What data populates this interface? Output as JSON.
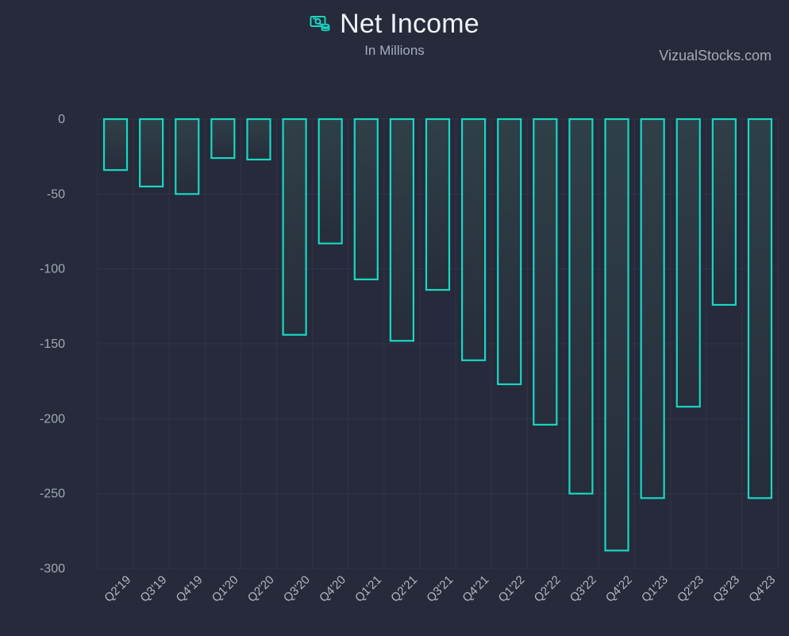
{
  "header": {
    "title": "Net Income",
    "subtitle": "In Millions",
    "watermark": "VizualStocks.com"
  },
  "colors": {
    "background": "#262a3b",
    "bar_stroke": "#17d8c2",
    "bar_fill_top": "#2f4048",
    "bar_fill_bottom": "#272d3b",
    "grid": "#303547",
    "axis_text": "#a2a8b6"
  },
  "icons": {
    "title_icon": "money-stack-icon"
  },
  "chart_data": {
    "type": "bar",
    "title": "Net Income",
    "subtitle": "In Millions",
    "xlabel": "",
    "ylabel": "",
    "categories": [
      "Q2'19",
      "Q3'19",
      "Q4'19",
      "Q1'20",
      "Q2'20",
      "Q3'20",
      "Q4'20",
      "Q1'21",
      "Q2'21",
      "Q3'21",
      "Q4'21",
      "Q1'22",
      "Q2'22",
      "Q3'22",
      "Q4'22",
      "Q1'23",
      "Q2'23",
      "Q3'23",
      "Q4'23"
    ],
    "values": [
      -34,
      -45,
      -50,
      -26,
      -27,
      -144,
      -83,
      -107,
      -148,
      -114,
      -161,
      -177,
      -204,
      -250,
      -288,
      -253,
      -192,
      -124,
      -253
    ],
    "ylim": [
      -300,
      0
    ],
    "yticks": [
      0,
      -50,
      -100,
      -150,
      -200,
      -250,
      -300
    ],
    "grid": true,
    "legend": "none"
  }
}
